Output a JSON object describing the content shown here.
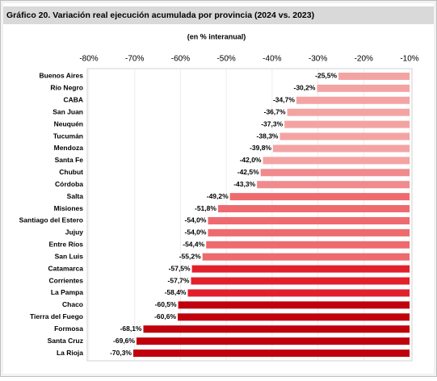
{
  "chart_data": {
    "type": "hbar",
    "title": "Gráfico 20. Variación real ejecución acumulada por provincia (2024 vs. 2023)",
    "subtitle": "(en % interanual)",
    "categories": [
      "Buenos Aires",
      "Río Negro",
      "CABA",
      "San Juan",
      "Neuquén",
      "Tucumán",
      "Mendoza",
      "Santa Fe",
      "Chubut",
      "Córdoba",
      "Salta",
      "Misiones",
      "Santiago del Estero",
      "Jujuy",
      "Entre Ríos",
      "San Luis",
      "Catamarca",
      "Corrientes",
      "La Pampa",
      "Chaco",
      "Tierra del Fuego",
      "Formosa",
      "Santa Cruz",
      "La Rioja"
    ],
    "values": [
      -25.5,
      -30.2,
      -34.7,
      -36.7,
      -37.3,
      -38.3,
      -39.8,
      -42.0,
      -42.5,
      -43.3,
      -49.2,
      -51.8,
      -54.0,
      -54.0,
      -54.4,
      -55.2,
      -57.5,
      -57.7,
      -58.4,
      -60.5,
      -60.6,
      -68.1,
      -69.6,
      -70.3
    ],
    "value_labels": [
      "-25,5%",
      "-30,2%",
      "-34,7%",
      "-36,7%",
      "-37,3%",
      "-38,3%",
      "-39,8%",
      "-42,0%",
      "-42,5%",
      "-43,3%",
      "-49,2%",
      "-51,8%",
      "-54,0%",
      "-54,0%",
      "-54,4%",
      "-55,2%",
      "-57,5%",
      "-57,7%",
      "-58,4%",
      "-60,5%",
      "-60,6%",
      "-68,1%",
      "-69,6%",
      "-70,3%"
    ],
    "colors": [
      "#f4a3a3",
      "#f4a3a3",
      "#f4a3a3",
      "#f4a3a3",
      "#f4a3a3",
      "#f4a3a3",
      "#f4a3a3",
      "#f4a3a3",
      "#f08a8c",
      "#f08a8c",
      "#ee6a6e",
      "#ee6a6e",
      "#ee6a6e",
      "#ee6a6e",
      "#ee6a6e",
      "#ee6a6e",
      "#e2202b",
      "#e2202b",
      "#e2202b",
      "#c0000c",
      "#c0000c",
      "#c0000c",
      "#c0000c",
      "#c0000c"
    ],
    "xlim": [
      -80,
      -10
    ],
    "xticks": [
      {
        "value": -80,
        "label": "-80%"
      },
      {
        "value": -70,
        "label": "-70%"
      },
      {
        "value": -60,
        "label": "-60%"
      },
      {
        "value": -50,
        "label": "-50%"
      },
      {
        "value": -40,
        "label": "-40%"
      },
      {
        "value": -30,
        "label": "-30%"
      },
      {
        "value": -20,
        "label": "-20%"
      },
      {
        "value": -10,
        "label": "-10%"
      }
    ],
    "grid": true
  }
}
